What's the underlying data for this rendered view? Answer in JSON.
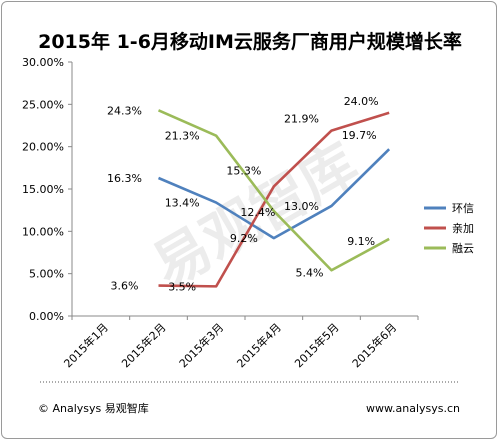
{
  "chart_data": {
    "type": "line",
    "title": "2015年 1-6月移动IM云服务厂商用户规模增长率",
    "categories": [
      "2015年1月",
      "2015年2月",
      "2015年3月",
      "2015年4月",
      "2015年5月",
      "2015年6月"
    ],
    "ylim": [
      0,
      30
    ],
    "yticks": [
      "0.00%",
      "5.00%",
      "10.00%",
      "15.00%",
      "20.00%",
      "25.00%",
      "30.00%"
    ],
    "grid": false,
    "legend_position": "right",
    "series": [
      {
        "name": "环信",
        "color": "#4f81bd",
        "values": [
          null,
          16.3,
          13.4,
          9.2,
          13.0,
          19.7
        ],
        "labels": [
          "",
          "16.3%",
          "13.4%",
          "9.2%",
          "13.0%",
          "19.7%"
        ]
      },
      {
        "name": "亲加",
        "color": "#c0504d",
        "values": [
          null,
          3.6,
          3.5,
          15.3,
          21.9,
          24.0
        ],
        "labels": [
          "",
          "3.6%",
          "3.5%",
          "15.3%",
          "21.9%",
          "24.0%"
        ]
      },
      {
        "name": "融云",
        "color": "#9bbb59",
        "values": [
          null,
          24.3,
          21.3,
          12.4,
          5.4,
          9.1
        ],
        "labels": [
          "",
          "24.3%",
          "21.3%",
          "12.4%",
          "5.4%",
          "9.1%"
        ]
      }
    ]
  },
  "footer": {
    "left": "© Analysys 易观智库",
    "right": "www.analysys.cn"
  },
  "watermark": "易观智库"
}
